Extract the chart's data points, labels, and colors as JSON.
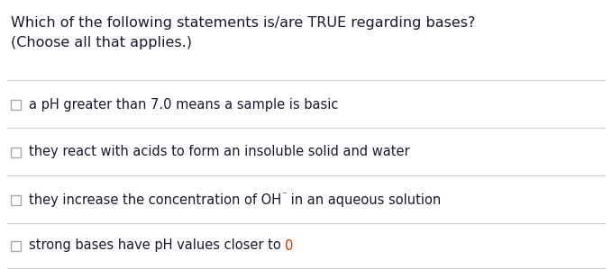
{
  "background_color": "#ffffff",
  "title_line1": "Which of the following statements is/are TRUE regarding bases?",
  "title_line2": "(Choose all that applies.)",
  "title_color": "#1a1a2e",
  "title_fontsize": 11.5,
  "options": [
    "a pH greater than 7.0 means a sample is basic",
    "they react with acids to form an insoluble solid and water",
    "they increase the concentration of OH",
    "strong bases have pH values closer to "
  ],
  "option_color": "#1a1a2e",
  "option_fontsize": 10.5,
  "superscript_text": "⁻",
  "oh_rest": " in an aqueous solution",
  "last_option_end": "0",
  "last_option_end_color": "#cc3300",
  "checkbox_color": "#aaaaaa",
  "separator_color": "#cccccc",
  "fig_width": 6.79,
  "fig_height": 2.99,
  "dpi": 100
}
